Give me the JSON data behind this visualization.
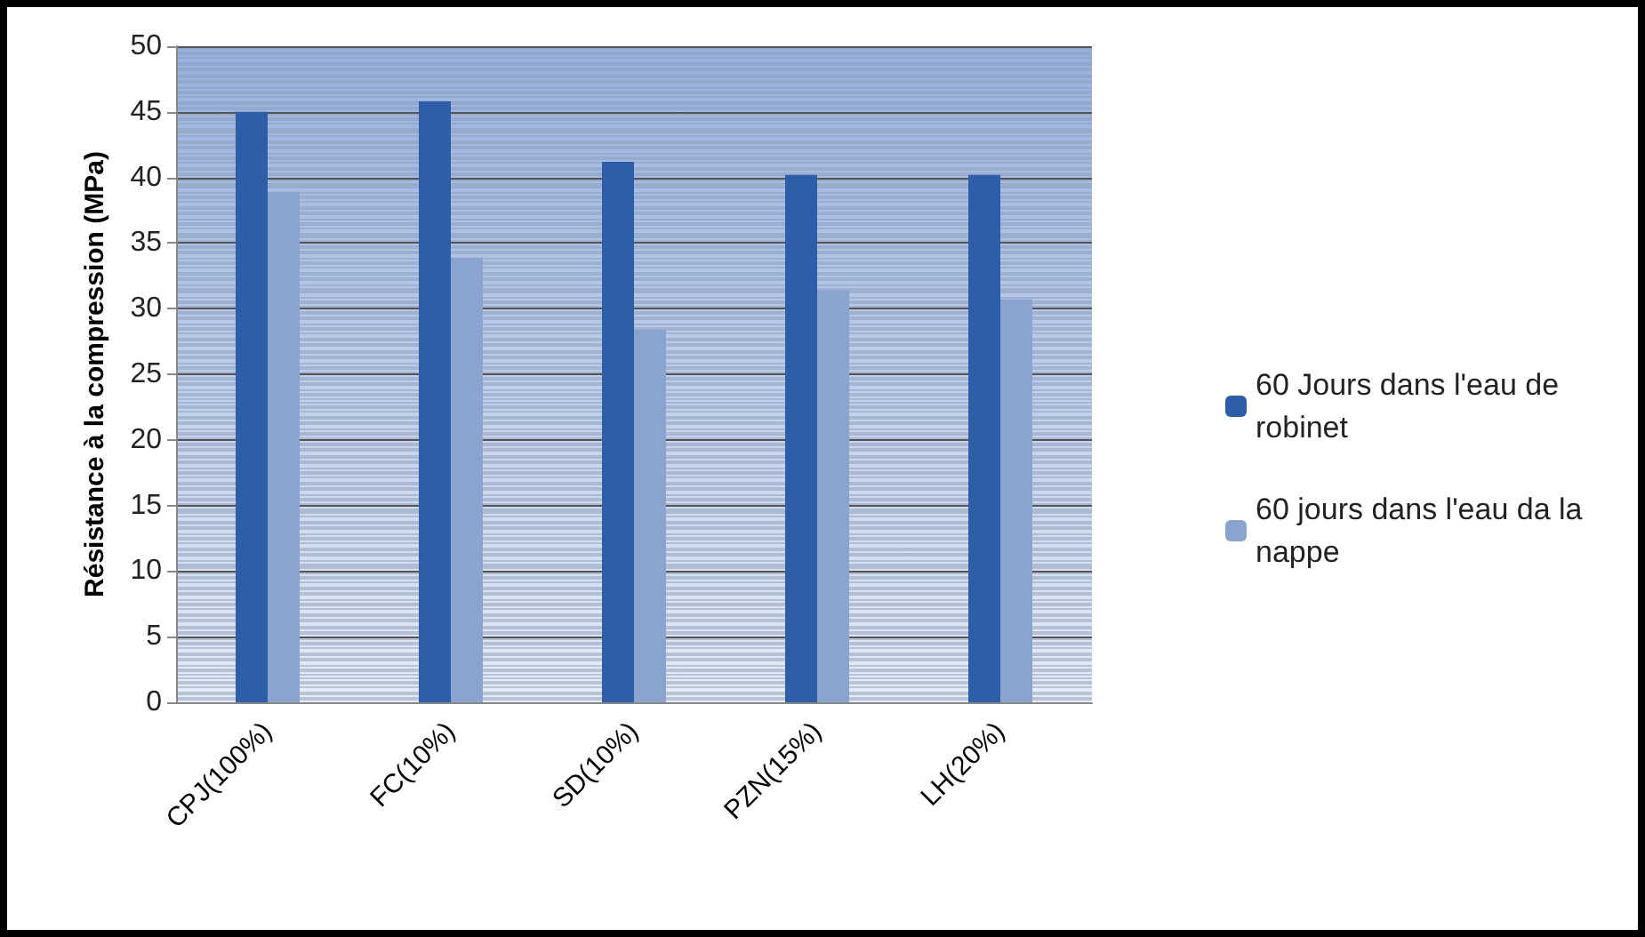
{
  "chart_data": {
    "type": "bar",
    "ylabel": "Résistance à la compression (MPa)",
    "categories": [
      "CPJ(100%)",
      "FC(10%)",
      "SD(10%)",
      "PZN(15%)",
      "LH(20%)"
    ],
    "series": [
      {
        "name": "60 Jours dans l'eau de robinet",
        "color": "#2f5ea8",
        "values": [
          45,
          45.8,
          41.2,
          40.2,
          40.2
        ]
      },
      {
        "name": "60 jours dans l'eau da la nappe",
        "color": "#8aa3cf",
        "values": [
          38.9,
          33.9,
          28.4,
          31.4,
          30.7
        ]
      }
    ],
    "ylim": [
      0,
      50
    ],
    "yticks": [
      0,
      5,
      10,
      15,
      20,
      25,
      30,
      35,
      40,
      45,
      50
    ],
    "grid": "y",
    "legend": "right"
  }
}
